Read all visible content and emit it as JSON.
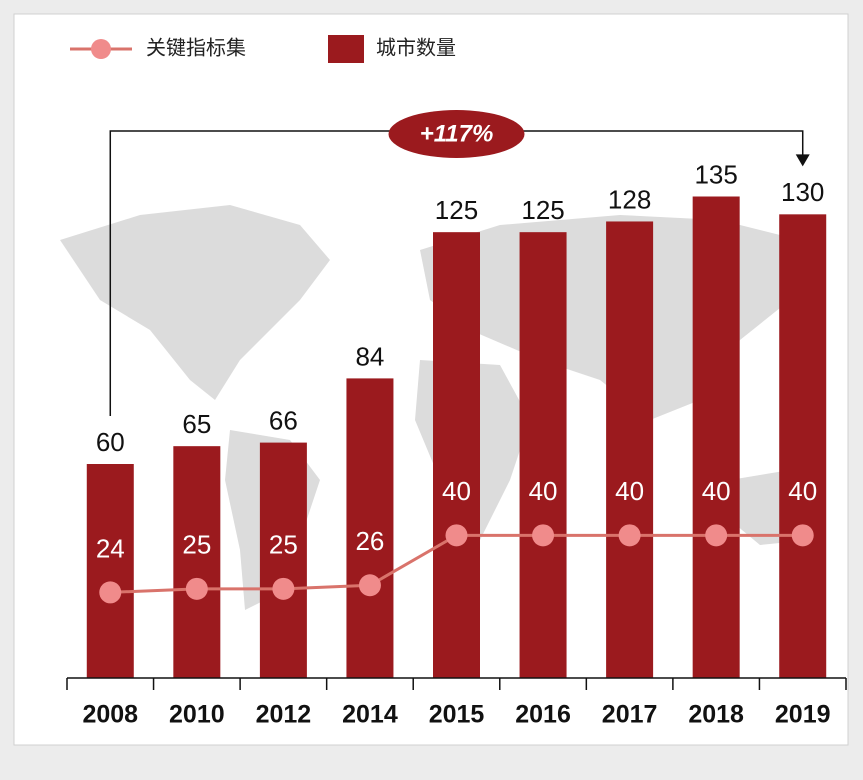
{
  "chart_data": {
    "type": "combo",
    "categories": [
      "2008",
      "2010",
      "2012",
      "2014",
      "2015",
      "2016",
      "2017",
      "2018",
      "2019"
    ],
    "series": [
      {
        "name": "关键指标集",
        "type": "line",
        "color": "#d9736b",
        "marker_color": "#f08b8b",
        "values": [
          24,
          25,
          25,
          26,
          40,
          40,
          40,
          40,
          40
        ]
      },
      {
        "name": "城市数量",
        "type": "bar",
        "color": "#9b1a1e",
        "values": [
          60,
          65,
          66,
          84,
          125,
          125,
          128,
          135,
          130
        ]
      }
    ],
    "annotation": "+117%",
    "ylim": [
      0,
      150
    ]
  }
}
